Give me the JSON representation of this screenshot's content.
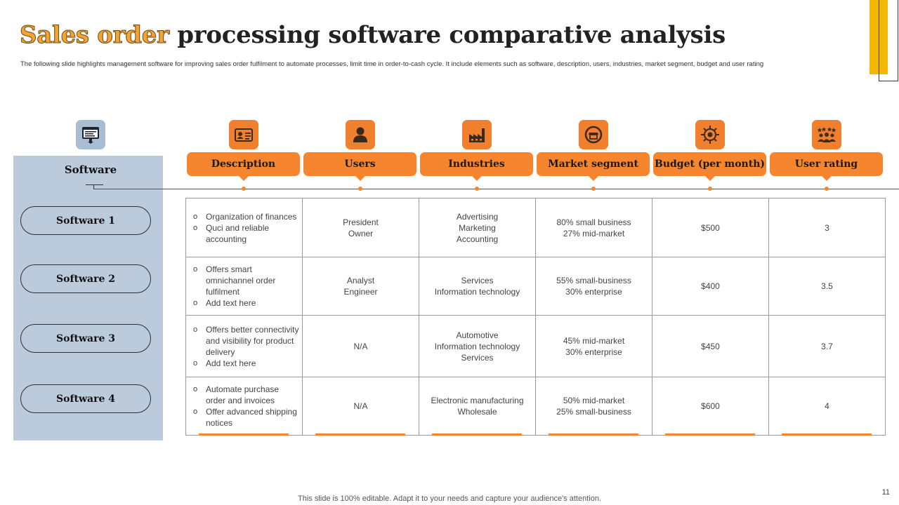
{
  "title": {
    "highlight": "Sales order",
    "rest": "processing software comparative analysis"
  },
  "subtitle": "The following slide highlights management  software for improving sales order fulfilment to automate  processes, limit time  in order-to-cash cycle. It include elements  such as software, description, users, industries, market segment, budget and user rating",
  "software_header": "Software",
  "software": [
    "Software 1",
    "Software 2",
    "Software 3",
    "Software 4"
  ],
  "icons": {
    "software": "browser-icon",
    "description": "id-card-icon",
    "users": "user-icon",
    "industries": "factory-icon",
    "market_segment": "market-stall-icon",
    "budget": "budget-target-icon",
    "user_rating": "audience-rating-icon"
  },
  "columns": [
    "Description",
    "Users",
    "Industries",
    "Market segment",
    "Budget (per month)",
    "User rating"
  ],
  "rows": [
    {
      "description": [
        "Organization of finances",
        "Quci and reliable accounting"
      ],
      "users": "President\nOwner",
      "industries": "Advertising\nMarketing\nAccounting",
      "market": "80% small business\n27% mid-market",
      "budget": "$500",
      "rating": "3"
    },
    {
      "description": [
        "Offers smart omnichannel order fulfilment",
        "Add text here"
      ],
      "users": "Analyst\nEngineer",
      "industries": "Services\nInformation  technology",
      "market": "55% small-business\n30% enterprise",
      "budget": "$400",
      "rating": "3.5"
    },
    {
      "description": [
        "Offers better connectivity and visibility for product delivery",
        "Add text here"
      ],
      "users": "N/A",
      "industries": "Automotive\nInformation technology\nServices",
      "market": "45% mid-market\n30% enterprise",
      "budget": "$450",
      "rating": "3.7"
    },
    {
      "description": [
        "Automate purchase order and invoices",
        "Offer advanced shipping notices"
      ],
      "users": "N/A",
      "industries": "Electronic manufacturing\nWholesale",
      "market": "50% mid-market\n25% small-business",
      "budget": "$600",
      "rating": "4"
    }
  ],
  "footer": "This slide is 100% editable. Adapt it to your needs and capture your audience's attention.",
  "page_number": "11",
  "colors": {
    "accent": "#f5852f",
    "panel": "#bccbdc",
    "highlight": "#f4a233",
    "deco": "#f5b800"
  }
}
